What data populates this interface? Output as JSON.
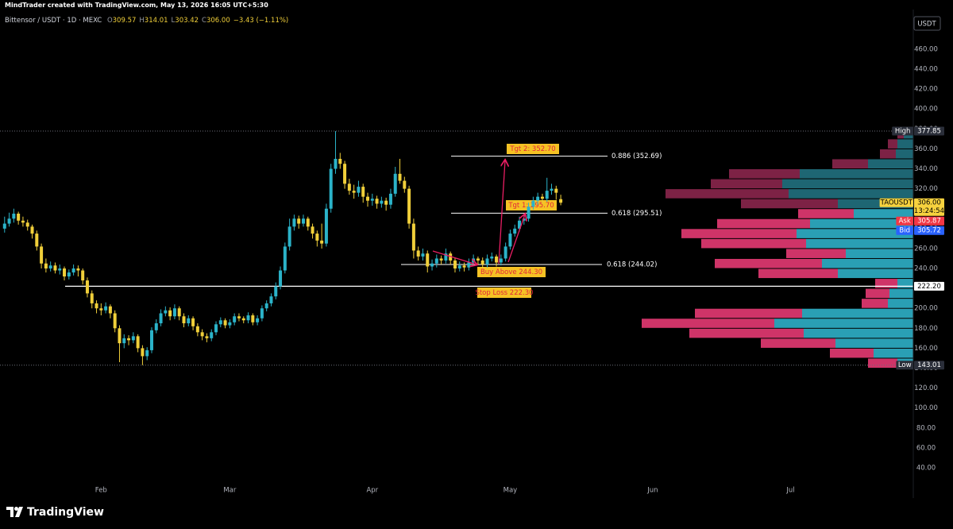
{
  "header": {
    "credit": "MindTrader created with TradingView.com, May 13, 2026 16:05 UTC+5:30"
  },
  "chart_data": {
    "type": "candlestick",
    "title": "Bittensor / USDT · 1D · MEXC",
    "ohlc_labels": [
      "O",
      "H",
      "L",
      "C"
    ],
    "ohlc": [
      309.57,
      314.01,
      303.42,
      {
        "value": 306,
        "label": "306.00"
      }
    ],
    "change": "−3.43 (−1.11%)",
    "currency": "USDT",
    "up_color": "#2bb3c9",
    "down_color": "#f0cf3a",
    "candles": [
      [
        280,
        292,
        276,
        285
      ],
      [
        285,
        296,
        282,
        290
      ],
      [
        290,
        300,
        286,
        295
      ],
      [
        295,
        297,
        284,
        288
      ],
      [
        288,
        292,
        282,
        286
      ],
      [
        286,
        289,
        278,
        282
      ],
      [
        282,
        284,
        270,
        275
      ],
      [
        275,
        278,
        258,
        262
      ],
      [
        262,
        265,
        240,
        245
      ],
      [
        245,
        250,
        236,
        240
      ],
      [
        240,
        247,
        237,
        243
      ],
      [
        243,
        246,
        235,
        238
      ],
      [
        238,
        244,
        234,
        240
      ],
      [
        240,
        242,
        228,
        232
      ],
      [
        232,
        239,
        229,
        236
      ],
      [
        236,
        244,
        233,
        240
      ],
      [
        240,
        243,
        232,
        238
      ],
      [
        238,
        240,
        224,
        228
      ],
      [
        228,
        231,
        211,
        215
      ],
      [
        215,
        218,
        200,
        205
      ],
      [
        205,
        208,
        195,
        200
      ],
      [
        200,
        205,
        193,
        198
      ],
      [
        198,
        206,
        195,
        202
      ],
      [
        202,
        204,
        190,
        195
      ],
      [
        195,
        198,
        176,
        180
      ],
      [
        180,
        183,
        146,
        165
      ],
      [
        165,
        174,
        160,
        170
      ],
      [
        170,
        173,
        163,
        168
      ],
      [
        168,
        176,
        165,
        172
      ],
      [
        172,
        174,
        156,
        160
      ],
      [
        160,
        163,
        143.01,
        152
      ],
      [
        152,
        161,
        148,
        158
      ],
      [
        158,
        181,
        155,
        178
      ],
      [
        178,
        189,
        175,
        185
      ],
      [
        185,
        199,
        182,
        195
      ],
      [
        195,
        202,
        192,
        198
      ],
      [
        198,
        201,
        188,
        192
      ],
      [
        192,
        204,
        189,
        200
      ],
      [
        200,
        202,
        188,
        192
      ],
      [
        192,
        195,
        181,
        185
      ],
      [
        185,
        193,
        182,
        190
      ],
      [
        190,
        192,
        178,
        182
      ],
      [
        182,
        185,
        172,
        176
      ],
      [
        176,
        179,
        168,
        172
      ],
      [
        172,
        175,
        166,
        170
      ],
      [
        170,
        179,
        167,
        176
      ],
      [
        176,
        187,
        173,
        184
      ],
      [
        184,
        191,
        181,
        188
      ],
      [
        188,
        190,
        180,
        183
      ],
      [
        183,
        189,
        180,
        186
      ],
      [
        186,
        195,
        183,
        192
      ],
      [
        192,
        195,
        187,
        190
      ],
      [
        190,
        192,
        185,
        188
      ],
      [
        188,
        196,
        185,
        193
      ],
      [
        193,
        195,
        183,
        186
      ],
      [
        186,
        193,
        183,
        190
      ],
      [
        190,
        203,
        187,
        200
      ],
      [
        200,
        208,
        197,
        205
      ],
      [
        205,
        215,
        202,
        212
      ],
      [
        212,
        226,
        209,
        222
      ],
      [
        222,
        242,
        219,
        238
      ],
      [
        238,
        266,
        235,
        262
      ],
      [
        262,
        290,
        258,
        282
      ],
      [
        282,
        294,
        278,
        290
      ],
      [
        290,
        293,
        280,
        285
      ],
      [
        285,
        294,
        282,
        290
      ],
      [
        290,
        292,
        278,
        282
      ],
      [
        282,
        285,
        270,
        275
      ],
      [
        275,
        278,
        262,
        268
      ],
      [
        268,
        285,
        260,
        265
      ],
      [
        265,
        305,
        262,
        300
      ],
      [
        300,
        345,
        296,
        340
      ],
      [
        340,
        377.85,
        335,
        350
      ],
      [
        350,
        356,
        340,
        345
      ],
      [
        345,
        348,
        320,
        325
      ],
      [
        325,
        330,
        314,
        318
      ],
      [
        318,
        324,
        310,
        316
      ],
      [
        316,
        328,
        312,
        322
      ],
      [
        322,
        325,
        306,
        312
      ],
      [
        312,
        316,
        302,
        308
      ],
      [
        308,
        315,
        303,
        310
      ],
      [
        310,
        313,
        300,
        305
      ],
      [
        305,
        312,
        301,
        308
      ],
      [
        308,
        311,
        298,
        304
      ],
      [
        304,
        320,
        300,
        315
      ],
      [
        315,
        342,
        312,
        335
      ],
      [
        335,
        350,
        325,
        328
      ],
      [
        328,
        332,
        316,
        320
      ],
      [
        320,
        323,
        280,
        285
      ],
      [
        285,
        290,
        250,
        258
      ],
      [
        258,
        262,
        248,
        252
      ],
      [
        252,
        260,
        248,
        255
      ],
      [
        255,
        258,
        236,
        242
      ],
      [
        242,
        249,
        238,
        245
      ],
      [
        245,
        254,
        241,
        250
      ],
      [
        250,
        253,
        244,
        248
      ],
      [
        248,
        260,
        245,
        255
      ],
      [
        255,
        257,
        244,
        248
      ],
      [
        248,
        251,
        236,
        240
      ],
      [
        240,
        247,
        237,
        243
      ],
      [
        243,
        246,
        237,
        241
      ],
      [
        241,
        250,
        238,
        246
      ],
      [
        246,
        254,
        243,
        250
      ],
      [
        250,
        252,
        244,
        248
      ],
      [
        248,
        251,
        240,
        244
      ],
      [
        244,
        254,
        241,
        250
      ],
      [
        250,
        256,
        247,
        252
      ],
      [
        252,
        254,
        242,
        246
      ],
      [
        246,
        254,
        243,
        250
      ],
      [
        250,
        266,
        247,
        262
      ],
      [
        262,
        279,
        259,
        275
      ],
      [
        275,
        284,
        272,
        280
      ],
      [
        280,
        292,
        277,
        288
      ],
      [
        288,
        294,
        284,
        290
      ],
      [
        290,
        306,
        287,
        302
      ],
      [
        302,
        312,
        299,
        308
      ],
      [
        308,
        316,
        304,
        312
      ],
      [
        312,
        315,
        305,
        310
      ],
      [
        310,
        331,
        307,
        318
      ],
      [
        318,
        325,
        314,
        320
      ],
      [
        320,
        323,
        309,
        316
      ],
      [
        309.57,
        314.01,
        303.42,
        306
      ]
    ],
    "xlim": [
      -1.0,
      197.7
    ],
    "xticks": [
      {
        "value": 21,
        "label": "Feb"
      },
      {
        "value": 49,
        "label": "Mar"
      },
      {
        "value": 80,
        "label": "Apr"
      },
      {
        "value": 110,
        "label": "May"
      },
      {
        "value": 141,
        "label": "Jun"
      },
      {
        "value": 171,
        "label": "Jul"
      }
    ],
    "ylim": [
      9.7,
      499.8
    ],
    "yticks": [
      {
        "value": 40,
        "label": "40.00"
      },
      {
        "value": 60,
        "label": "60.00"
      },
      {
        "value": 80,
        "label": "80.00"
      },
      {
        "value": 100,
        "label": "100.00"
      },
      {
        "value": 120,
        "label": "120.00"
      },
      {
        "value": 140,
        "label": "140.00"
      },
      {
        "value": 160,
        "label": "160.00"
      },
      {
        "value": 180,
        "label": "180.00"
      },
      {
        "value": 200,
        "label": "200.00"
      },
      {
        "value": 220,
        "label": "220.00"
      },
      {
        "value": 240,
        "label": "240.00"
      },
      {
        "value": 260,
        "label": "260.00"
      },
      {
        "value": 280,
        "label": "280.00"
      },
      {
        "value": 300,
        "label": "300.00"
      },
      {
        "value": 320,
        "label": "320.00"
      },
      {
        "value": 340,
        "label": "340.00"
      },
      {
        "value": 360,
        "label": "360.00"
      },
      {
        "value": 380,
        "label": "380.00"
      },
      {
        "value": 400,
        "label": "400.00"
      },
      {
        "value": 420,
        "label": "420.00"
      },
      {
        "value": 440,
        "label": "440.00"
      },
      {
        "value": 460,
        "label": "460.00"
      }
    ],
    "price_markers": [
      {
        "tag": "High",
        "value": 377.85,
        "color": "#2a2e39",
        "text_color": "#ffffff",
        "line": "dotted"
      },
      {
        "tag": "TAOUSDT",
        "value": 306,
        "label": "306.00",
        "sub": "13:24:54",
        "color": "#f7d23e",
        "text_color": "#000000"
      },
      {
        "tag": "Ask",
        "value": 305.87,
        "color": "#f23645",
        "text_color": "#ffffff"
      },
      {
        "tag": "Bid",
        "value": 305.72,
        "color": "#2962ff",
        "text_color": "#ffffff"
      },
      {
        "value": 222.2,
        "label": "222.20",
        "color": "#ffffff",
        "text_color": "#000000",
        "line": "solid"
      },
      {
        "tag": "Low",
        "value": 143.01,
        "color": "#2a2e39",
        "text_color": "#ffffff",
        "line": "dotted"
      }
    ],
    "levels": [
      {
        "value": 352.69,
        "label": "0.886 (352.69)"
      },
      {
        "value": 295.51,
        "label": "0.618 (295.51)"
      },
      {
        "value": 244.02,
        "label": "0.618 (244.02)"
      }
    ],
    "annotations": [
      "Tgt 2: 352.70",
      "Tgt 1: 295.70",
      "Buy Above 244.30",
      "Stop Loss 222.30"
    ],
    "volume_profile": {
      "bins": [
        140,
        150,
        160,
        170,
        180,
        190,
        200,
        210,
        220,
        230,
        240,
        250,
        260,
        270,
        280,
        290,
        300,
        310,
        320,
        330,
        340,
        350,
        360,
        370,
        380
      ],
      "buy": [
        20,
        50,
        98,
        138,
        175,
        140,
        32,
        30,
        20,
        95,
        115,
        85,
        135,
        147,
        130,
        75,
        95,
        157,
        165,
        143,
        57,
        22,
        20,
        12
      ],
      "sell": [
        37,
        55,
        94,
        144,
        167,
        135,
        33,
        30,
        28,
        100,
        135,
        75,
        132,
        145,
        117,
        70,
        122,
        155,
        90,
        89,
        45,
        20,
        12,
        8
      ],
      "value_area": [
        140,
        300
      ],
      "buy_color": "#2a9fb4",
      "sell_color": "#cf3468",
      "buy_dim_color": "#1e6673",
      "sell_dim_color": "#7d2245"
    }
  },
  "footer": {
    "logo": "TradingView"
  }
}
